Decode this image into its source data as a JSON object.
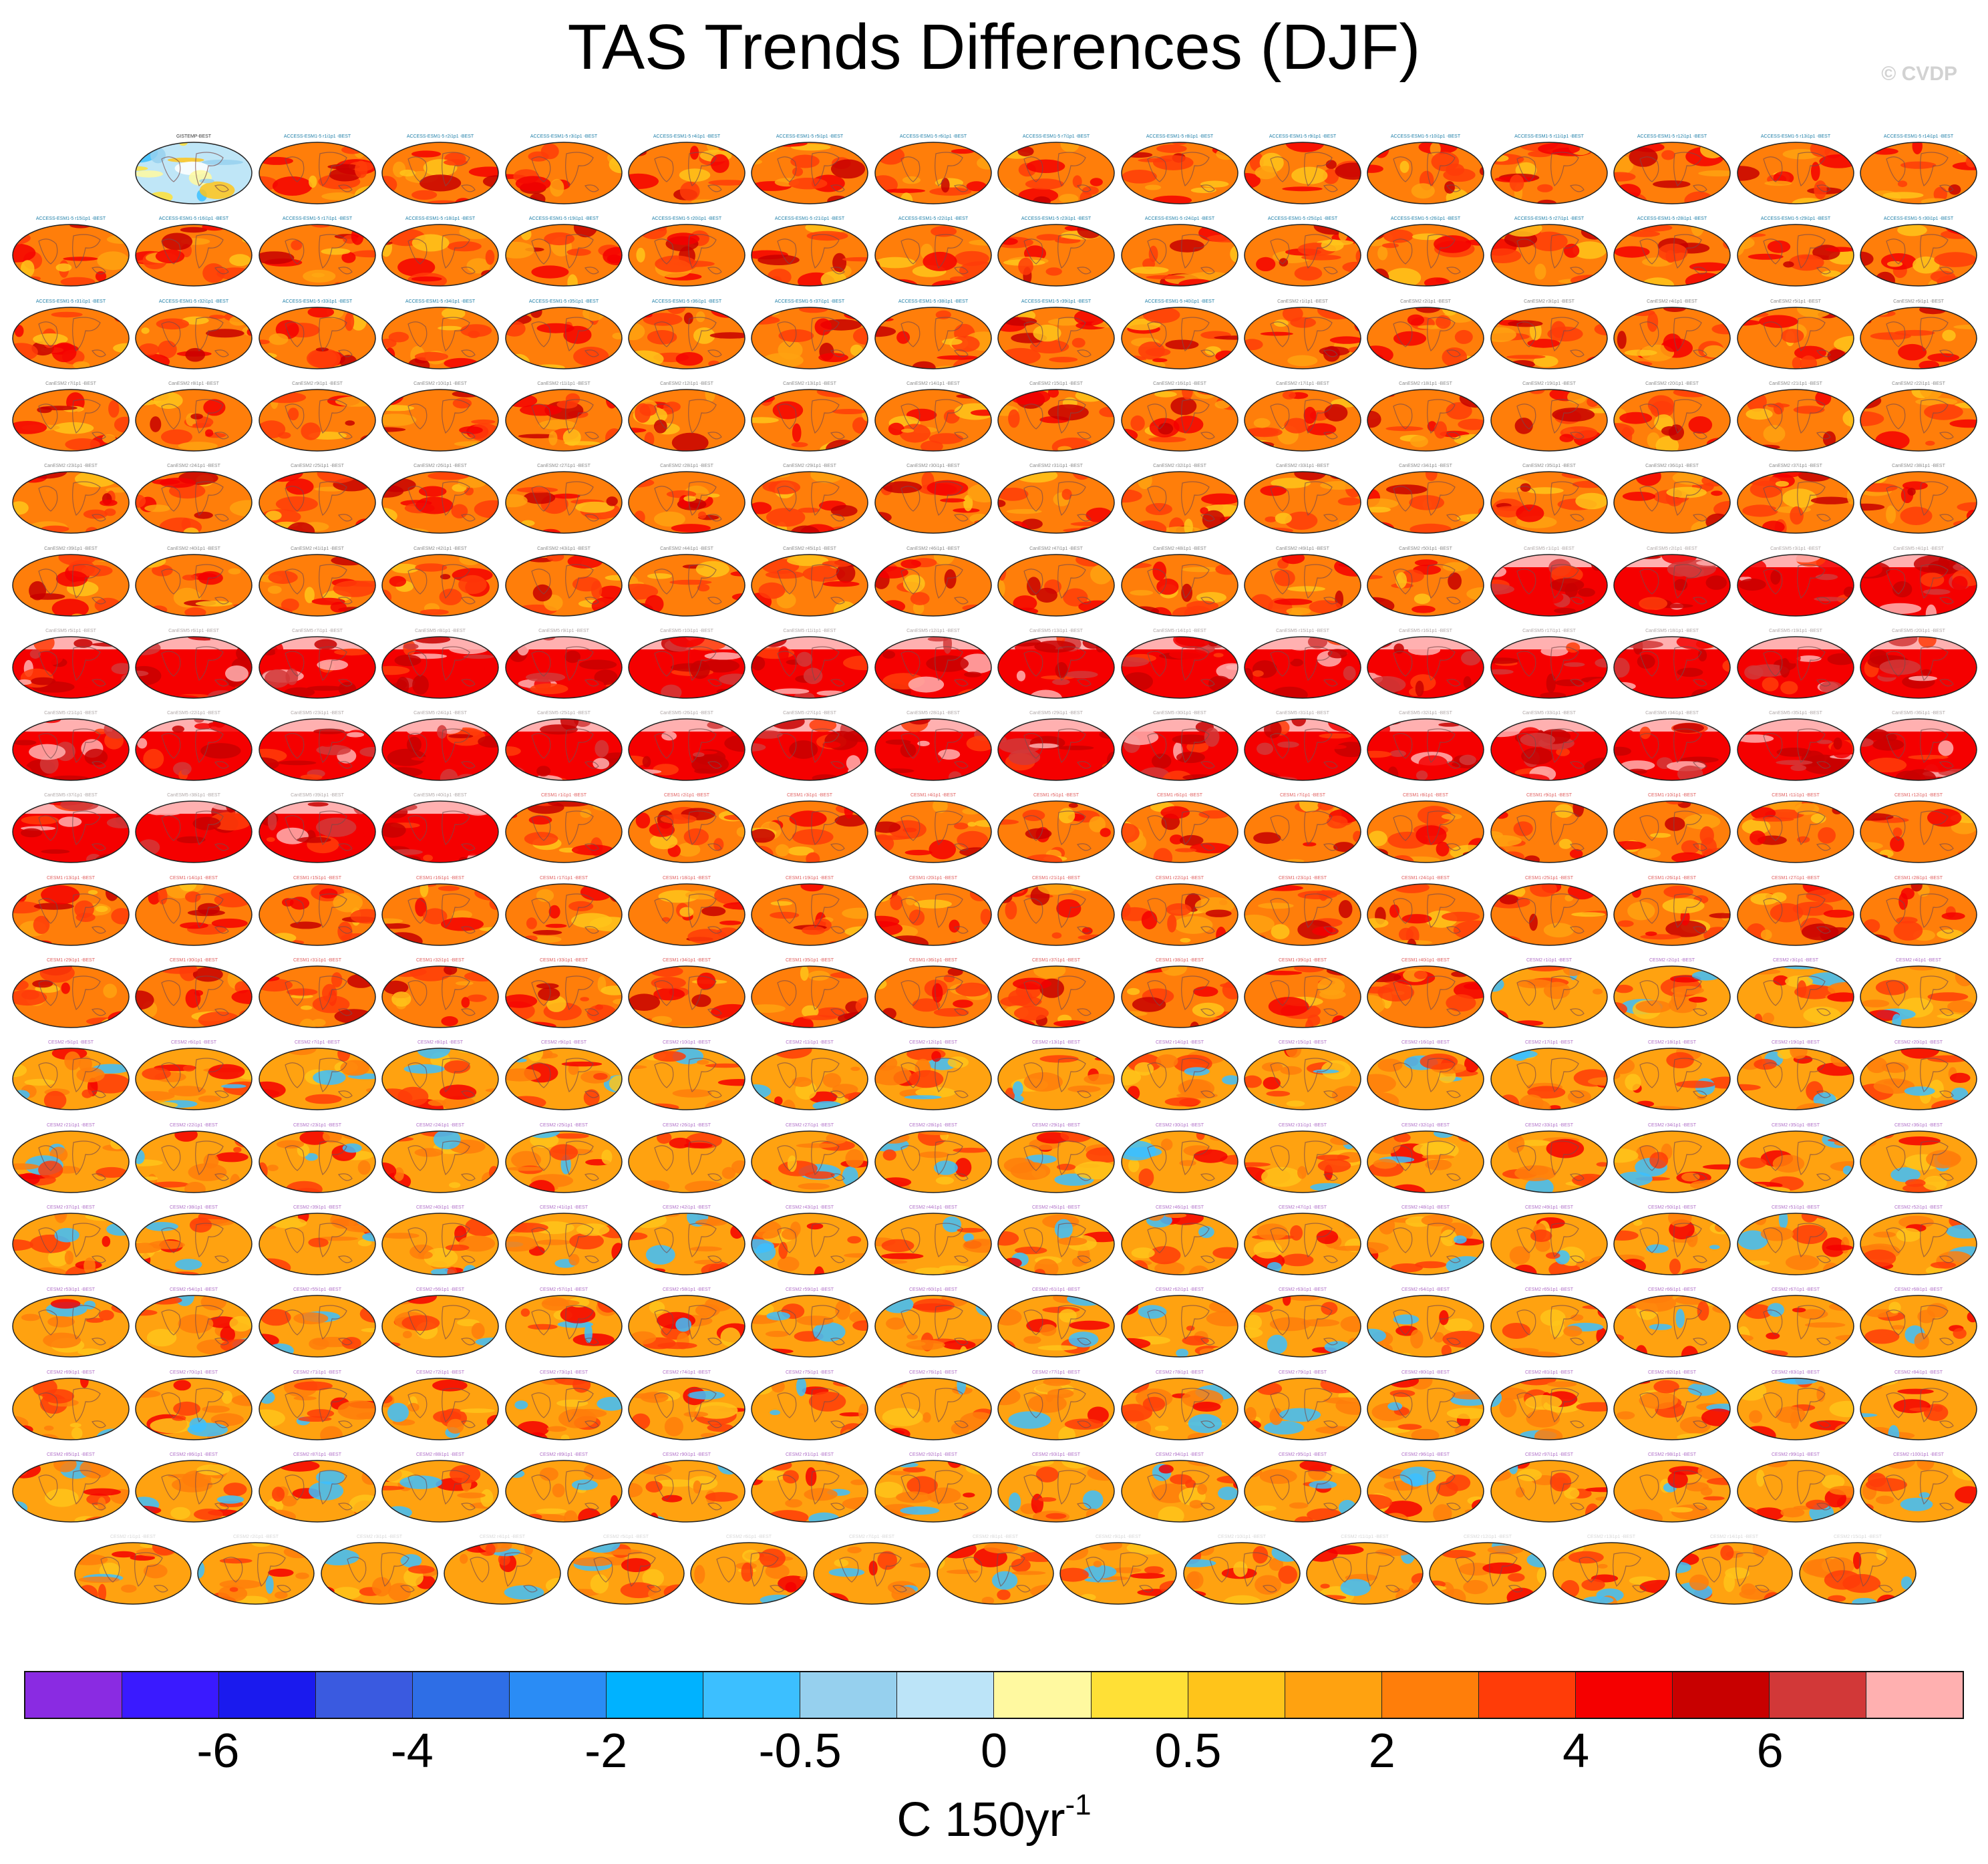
{
  "title": "TAS Trends Differences (DJF)",
  "copyright": "© CVDP",
  "units": {
    "base": "C 150yr",
    "exponent": "-1"
  },
  "colorbar": {
    "colors": [
      "#8a2be2",
      "#3a1aff",
      "#1a1aee",
      "#3a5ae0",
      "#2e6ee6",
      "#2a8cf5",
      "#00b2ff",
      "#3cbfff",
      "#96d0ee",
      "#bce4f8",
      "#fff9a0",
      "#ffe036",
      "#ffc41a",
      "#ffa210",
      "#ff7e0a",
      "#ff3c08",
      "#f50000",
      "#c80000",
      "#d23838",
      "#ffb0b0"
    ],
    "tick_labels": [
      "-6",
      "-4",
      "-2",
      "-0.5",
      "0",
      "0.5",
      "2",
      "4",
      "6"
    ],
    "tick_boundaries": [
      2,
      4,
      6,
      8,
      10,
      12,
      14,
      16,
      18
    ]
  },
  "panel_grid": {
    "rows": 18,
    "cols": 16,
    "last_row_count": 15,
    "first_panel": {
      "label": "GISTEMP-BEST",
      "style": "observed"
    },
    "groups": [
      {
        "model": "ACCESS-ESM1-5",
        "count": 40,
        "label_color": "#1f7fa8",
        "style": "warm"
      },
      {
        "model": "CanESM2",
        "count": 50,
        "label_color": "#8a8a8a",
        "style": "warm"
      },
      {
        "model": "CanESM5",
        "count": 40,
        "label_color": "#b0a8a8",
        "style": "hot"
      },
      {
        "model": "CESM1",
        "count": 40,
        "label_color": "#e06060",
        "style": "warm"
      },
      {
        "model": "CESM2",
        "count": 100,
        "label_color": "#b070c8",
        "style": "mixed"
      },
      {
        "model": "CESM2",
        "count": 16,
        "label_color": "#d8d8d8",
        "style": "mixed"
      }
    ]
  }
}
